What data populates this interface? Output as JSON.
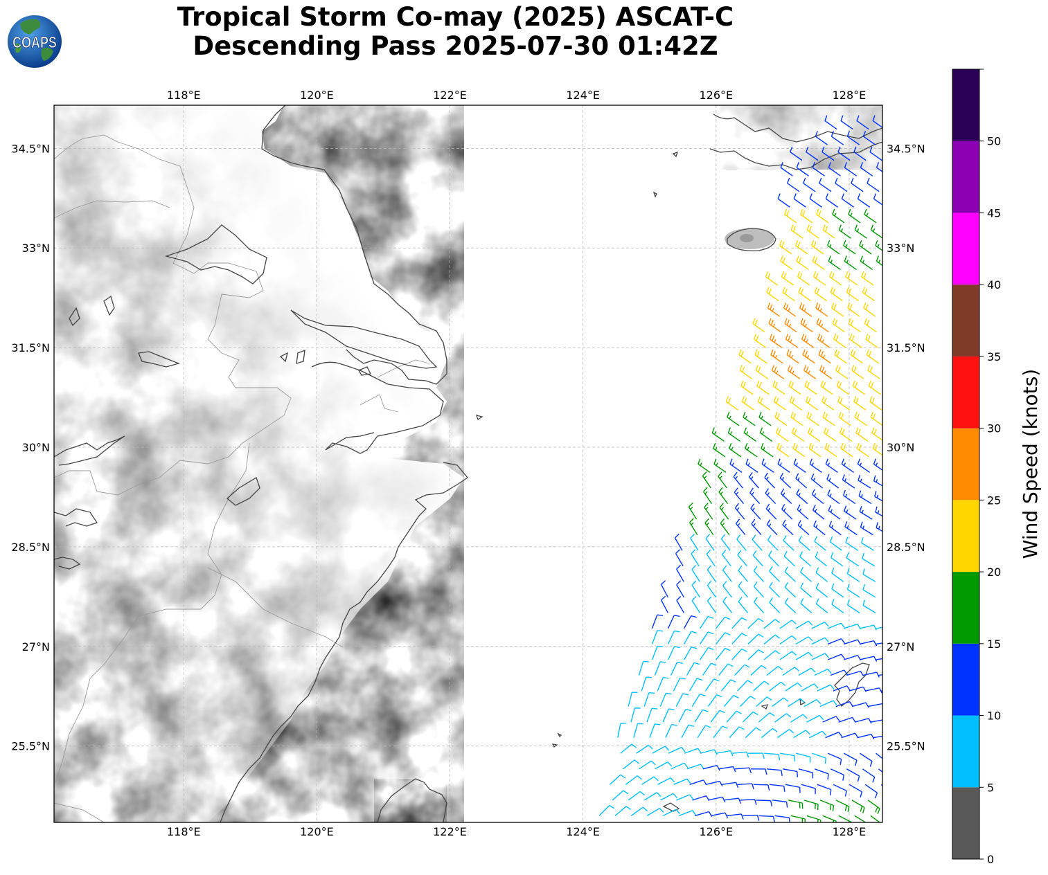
{
  "title": {
    "line1": "Tropical Storm Co-may (2025) ASCAT-C",
    "line2": "Descending Pass 2025-07-30 01:42Z"
  },
  "logo": {
    "text": "COAPS",
    "icon": "earth-globe-icon"
  },
  "map": {
    "lon_range": [
      116.05,
      128.5
    ],
    "lat_range": [
      24.35,
      35.15
    ],
    "lon_ticks": [
      {
        "value": 118,
        "label": "118°E"
      },
      {
        "value": 120,
        "label": "120°E"
      },
      {
        "value": 122,
        "label": "122°E"
      },
      {
        "value": 124,
        "label": "124°E"
      },
      {
        "value": 126,
        "label": "126°E"
      },
      {
        "value": 128,
        "label": "128°E"
      }
    ],
    "lat_ticks": [
      {
        "value": 34.5,
        "label": "34.5°N"
      },
      {
        "value": 33,
        "label": "33°N"
      },
      {
        "value": 31.5,
        "label": "31.5°N"
      },
      {
        "value": 30,
        "label": "30°N"
      },
      {
        "value": 28.5,
        "label": "28.5°N"
      },
      {
        "value": 27,
        "label": "27°N"
      },
      {
        "value": 25.5,
        "label": "25.5°N"
      }
    ],
    "gridlines": true,
    "coastline_color": "#444444",
    "border_color": "#999999"
  },
  "colorbar": {
    "label": "Wind Speed (knots)",
    "ticks": [
      "0",
      "5",
      "10",
      "15",
      "20",
      "25",
      "30",
      "35",
      "40",
      "45",
      "50"
    ],
    "bins": [
      {
        "min": 0,
        "max": 5,
        "color": "#595959"
      },
      {
        "min": 5,
        "max": 10,
        "color": "#00bfff"
      },
      {
        "min": 10,
        "max": 15,
        "color": "#0033ff"
      },
      {
        "min": 15,
        "max": 20,
        "color": "#009900"
      },
      {
        "min": 20,
        "max": 25,
        "color": "#ffd700"
      },
      {
        "min": 25,
        "max": 30,
        "color": "#ff8c00"
      },
      {
        "min": 30,
        "max": 35,
        "color": "#ff1111"
      },
      {
        "min": 35,
        "max": 40,
        "color": "#7f3a28"
      },
      {
        "min": 40,
        "max": 45,
        "color": "#ff00ff"
      },
      {
        "min": 45,
        "max": 50,
        "color": "#8b00b3"
      },
      {
        "min": 50,
        "max": 55,
        "color": "#2b0057"
      }
    ],
    "max": 55
  },
  "swath": {
    "pass": "descending",
    "west_edge": [
      [
        127.1,
        33.0
      ],
      [
        126.0,
        29.9
      ],
      [
        125.3,
        28.0
      ],
      [
        124.8,
        26.8
      ],
      [
        124.2,
        24.4
      ]
    ],
    "east_edge": [
      [
        128.5,
        34.7
      ],
      [
        128.5,
        24.4
      ]
    ]
  }
}
